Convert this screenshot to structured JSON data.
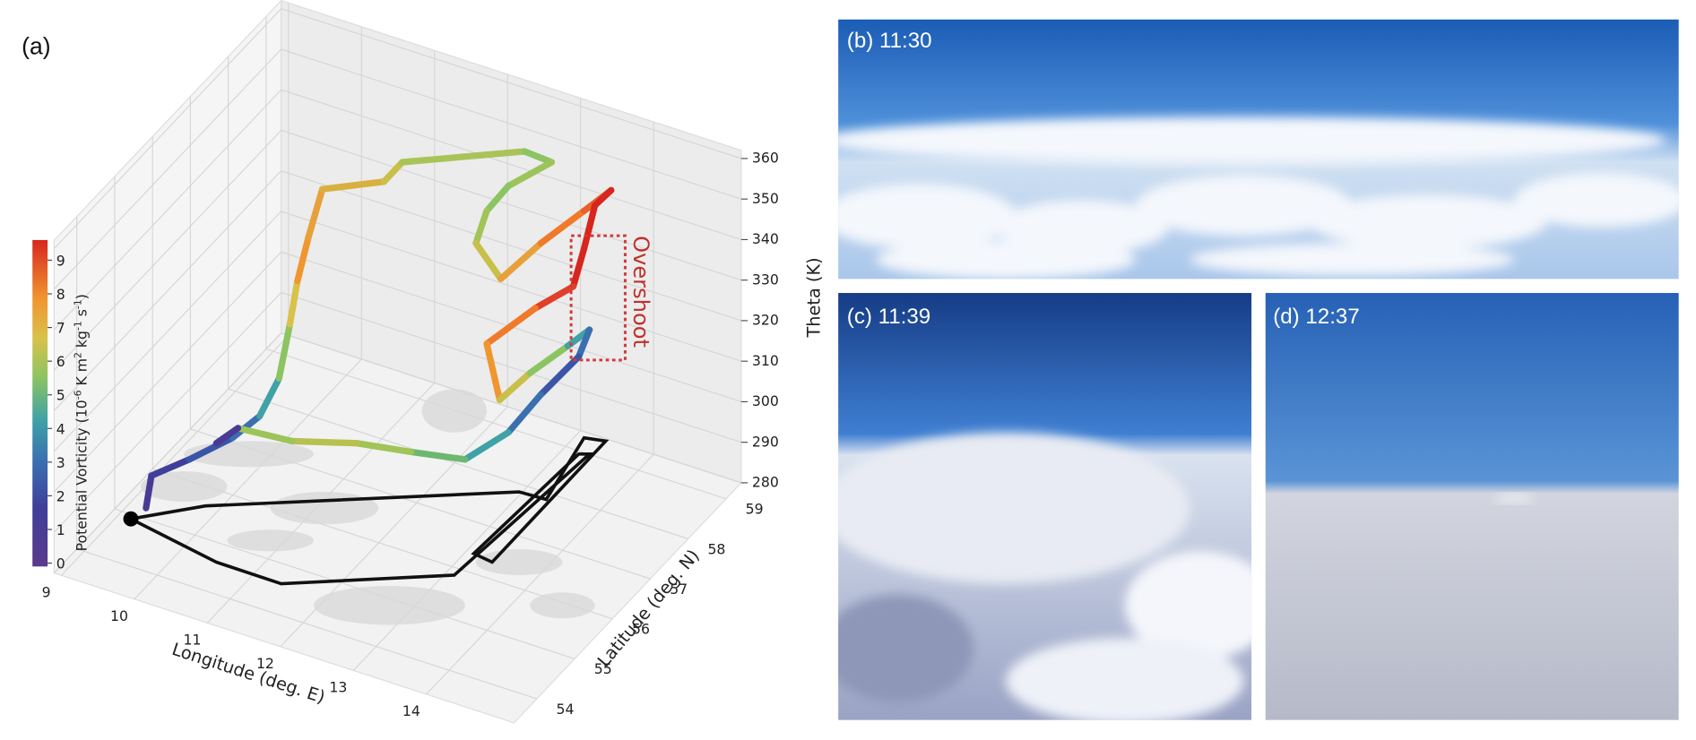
{
  "panel_a": {
    "label": "(a)",
    "theta_label": "Theta (K)",
    "theta_lim": [
      280,
      362
    ],
    "theta_ticks": [
      280,
      290,
      300,
      310,
      320,
      330,
      340,
      350,
      360
    ],
    "lon_label": "Longitude (deg. E)",
    "lon_lim": [
      8.9,
      15.2
    ],
    "lon_ticks": [
      9,
      10,
      11,
      12,
      13,
      14
    ],
    "lat_label": "Latitude (deg. N)",
    "lat_lim": [
      53.4,
      59.4
    ],
    "lat_ticks": [
      54,
      55,
      56,
      57,
      58,
      59
    ],
    "colorbar_label": [
      "Potential Vorticity (10",
      "-6",
      " K m",
      "2",
      " kg",
      "-1",
      " s",
      "-1",
      ")"
    ],
    "colorbar_lim": [
      -0.1,
      9.6
    ],
    "colorbar_ticks": [
      0,
      1,
      2,
      3,
      4,
      5,
      6,
      7,
      8,
      9
    ],
    "annotation": "Overshoot"
  },
  "panel_b": {
    "label": "(b) 11:30"
  },
  "panel_c": {
    "label": "(c) 11:39"
  },
  "panel_d": {
    "label": "(d) 12:37"
  }
}
